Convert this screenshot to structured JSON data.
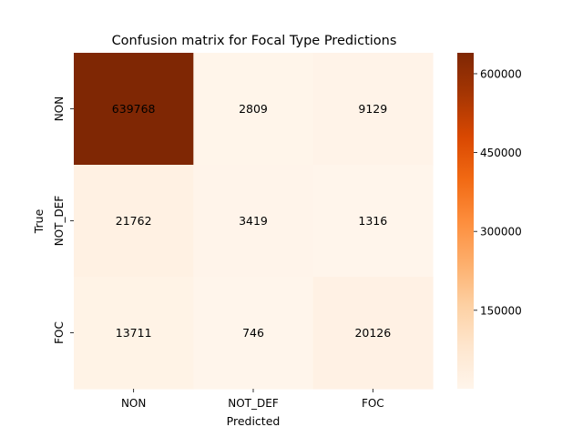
{
  "chart_data": {
    "type": "heatmap",
    "title": "Confusion matrix for Focal Type Predictions",
    "xlabel": "Predicted",
    "ylabel": "True",
    "x_categories": [
      "NON",
      "NOT_DEF",
      "FOC"
    ],
    "y_categories": [
      "NON",
      "NOT_DEF",
      "FOC"
    ],
    "values": [
      [
        639768,
        2809,
        9129
      ],
      [
        21762,
        3419,
        1316
      ],
      [
        13711,
        746,
        20126
      ]
    ],
    "colorbar": {
      "range": [
        746,
        639768
      ],
      "ticks": [
        150000,
        300000,
        450000,
        600000
      ],
      "tick_labels": [
        "150000",
        "300000",
        "450000",
        "600000"
      ],
      "colormap": "Oranges",
      "low_color": "#fff5eb",
      "high_color": "#7f2704"
    },
    "cell_text_colors": {
      "on_dark": "#ffffff",
      "on_light": "#262626"
    }
  }
}
